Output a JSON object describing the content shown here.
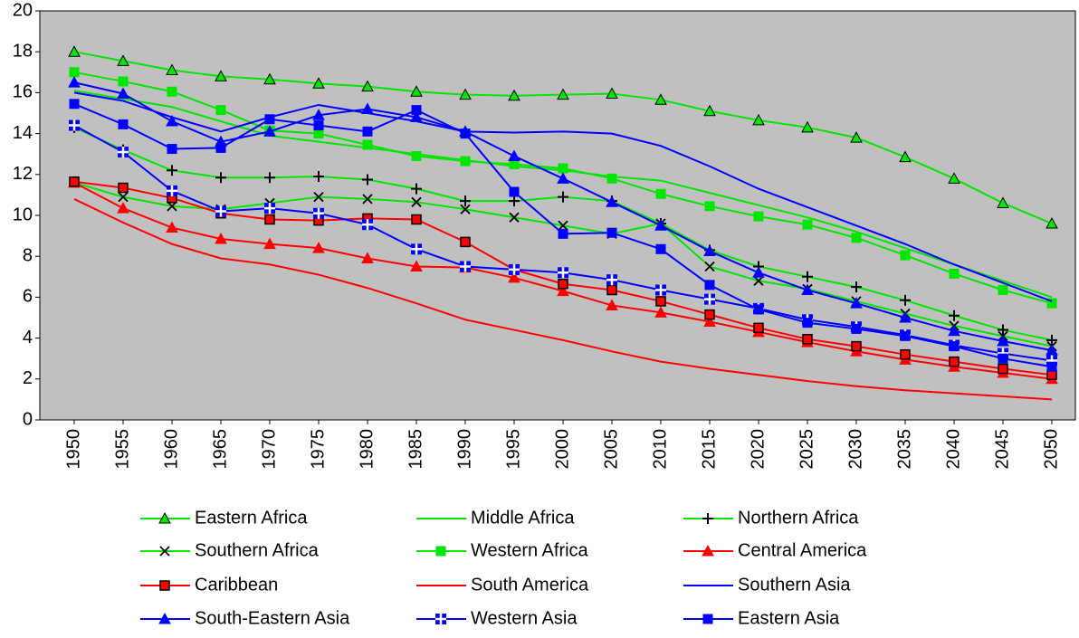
{
  "chart_data": {
    "type": "line",
    "categories": [
      "1950",
      "1955",
      "1960",
      "1965",
      "1970",
      "1975",
      "1980",
      "1985",
      "1990",
      "1995",
      "2000",
      "2005",
      "2010",
      "2015",
      "2020",
      "2025",
      "2030",
      "2035",
      "2040",
      "2045",
      "2050"
    ],
    "ylim": [
      0,
      20
    ],
    "yticks": [
      0,
      2,
      4,
      6,
      8,
      10,
      12,
      14,
      16,
      18,
      20
    ],
    "grid": false,
    "legend": "bottom",
    "plot_background": "#c0c0c0",
    "series": [
      {
        "name": "Eastern Africa",
        "color": "#00e600",
        "marker": "triangle",
        "marker_fill": "#00e600",
        "values": [
          18.0,
          17.55,
          17.1,
          16.8,
          16.65,
          16.45,
          16.3,
          16.05,
          15.9,
          15.85,
          15.9,
          15.95,
          15.65,
          15.1,
          14.65,
          14.3,
          13.8,
          12.85,
          11.8,
          10.6,
          9.6
        ]
      },
      {
        "name": "Middle Africa",
        "color": "#00e600",
        "marker": "none",
        "values": [
          16.1,
          15.7,
          15.3,
          14.6,
          13.9,
          13.6,
          13.3,
          13.0,
          12.7,
          12.4,
          12.2,
          11.9,
          11.7,
          11.1,
          10.5,
          9.9,
          9.2,
          8.4,
          7.6,
          6.8,
          6.0
        ]
      },
      {
        "name": "Northern Africa",
        "color": "#00e600",
        "marker": "plus",
        "marker_fill": "#000000",
        "values": [
          14.3,
          13.2,
          12.2,
          11.85,
          11.85,
          11.9,
          11.75,
          11.3,
          10.7,
          10.7,
          10.9,
          10.7,
          9.6,
          8.3,
          7.5,
          7.0,
          6.5,
          5.85,
          5.1,
          4.4,
          3.9
        ]
      },
      {
        "name": "Southern Africa",
        "color": "#00e600",
        "marker": "cross",
        "marker_fill": "#000000",
        "values": [
          11.6,
          10.9,
          10.45,
          10.3,
          10.6,
          10.9,
          10.8,
          10.65,
          10.3,
          9.9,
          9.5,
          9.1,
          9.6,
          7.5,
          6.8,
          6.4,
          5.8,
          5.2,
          4.6,
          4.1,
          3.6
        ]
      },
      {
        "name": "Western Africa",
        "color": "#00e600",
        "marker": "square",
        "marker_fill": "#00e600",
        "values": [
          17.0,
          16.55,
          16.05,
          15.15,
          14.15,
          14.0,
          13.45,
          12.9,
          12.65,
          12.5,
          12.3,
          11.8,
          11.05,
          10.45,
          9.95,
          9.55,
          8.9,
          8.05,
          7.15,
          6.35,
          5.7
        ]
      },
      {
        "name": "Central America",
        "color": "#ff0000",
        "marker": "triangle",
        "marker_fill": "#ff0000",
        "values": [
          11.6,
          10.35,
          9.4,
          8.85,
          8.6,
          8.4,
          7.9,
          7.5,
          7.45,
          6.95,
          6.3,
          5.6,
          5.25,
          4.8,
          4.3,
          3.8,
          3.35,
          2.95,
          2.6,
          2.3,
          2.0
        ]
      },
      {
        "name": "Caribbean",
        "color": "#ff0000",
        "marker": "square-outlined",
        "marker_fill": "#ff0000",
        "values": [
          11.65,
          11.35,
          10.85,
          10.1,
          9.8,
          9.75,
          9.85,
          9.8,
          8.7,
          7.35,
          6.65,
          6.35,
          5.8,
          5.15,
          4.5,
          3.95,
          3.6,
          3.2,
          2.85,
          2.5,
          2.2
        ]
      },
      {
        "name": "South America",
        "color": "#ff0000",
        "marker": "none",
        "values": [
          10.8,
          9.65,
          8.6,
          7.9,
          7.6,
          7.1,
          6.45,
          5.7,
          4.9,
          4.4,
          3.9,
          3.35,
          2.85,
          2.5,
          2.2,
          1.9,
          1.65,
          1.45,
          1.3,
          1.15,
          1.0
        ]
      },
      {
        "name": "Southern Asia",
        "color": "#0000ff",
        "marker": "none",
        "values": [
          16.0,
          15.6,
          14.8,
          14.1,
          14.8,
          15.4,
          15.0,
          14.6,
          14.1,
          14.05,
          14.1,
          14.0,
          13.4,
          12.4,
          11.3,
          10.4,
          9.5,
          8.6,
          7.6,
          6.7,
          5.8
        ]
      },
      {
        "name": "South-Eastern Asia",
        "color": "#0000ff",
        "marker": "triangle",
        "marker_fill": "#0000ff",
        "values": [
          16.5,
          15.95,
          14.6,
          13.6,
          14.1,
          14.9,
          15.2,
          14.8,
          14.1,
          12.9,
          11.8,
          10.65,
          9.5,
          8.25,
          7.2,
          6.35,
          5.7,
          5.0,
          4.35,
          3.85,
          3.4
        ]
      },
      {
        "name": "Western Asia",
        "color": "#0000ff",
        "marker": "square-cross",
        "marker_fill": "#0000ff",
        "values": [
          14.4,
          13.1,
          11.2,
          10.2,
          10.35,
          10.1,
          9.55,
          8.35,
          7.5,
          7.35,
          7.2,
          6.85,
          6.35,
          5.9,
          5.45,
          4.9,
          4.55,
          4.15,
          3.65,
          3.25,
          2.9
        ]
      },
      {
        "name": "Eastern Asia",
        "color": "#0000ff",
        "marker": "square",
        "marker_fill": "#0000ff",
        "values": [
          15.45,
          14.45,
          13.25,
          13.3,
          14.7,
          14.4,
          14.1,
          15.15,
          14.0,
          11.15,
          9.1,
          9.15,
          8.35,
          6.6,
          5.4,
          4.75,
          4.45,
          4.1,
          3.6,
          3.0,
          2.6
        ]
      }
    ]
  }
}
